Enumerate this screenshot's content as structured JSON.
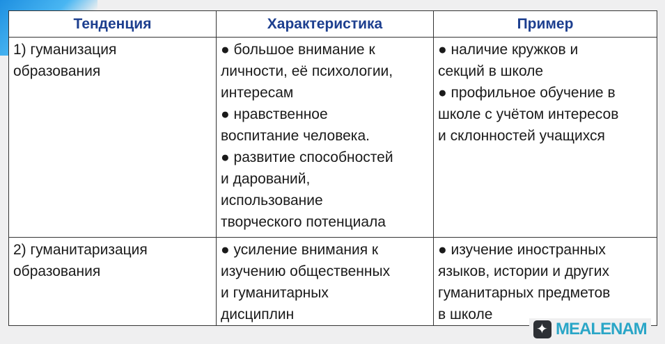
{
  "headers": [
    "Тенденция",
    "Характеристика",
    "Пример"
  ],
  "rows": [
    {
      "trend": [
        "1) гуманизация",
        "образования"
      ],
      "characteristic": [
        "● большое внимание к",
        "личности, её психологии,",
        "интересам",
        "● нравственное",
        "воспитание человека.",
        "● развитие способностей",
        "и дарований,",
        "использование",
        "творческого потенциала"
      ],
      "example": [
        "● наличие кружков и",
        "секций в школе",
        "● профильное обучение в",
        "школе с учётом интересов",
        "и склонностей учащихся"
      ]
    },
    {
      "trend": [
        "2) гуманитаризация",
        "образования"
      ],
      "characteristic": [
        "● усиление внимания к",
        "изучению общественных",
        "и гуманитарных",
        "дисциплин"
      ],
      "example": [
        "● изучение иностранных",
        "языков, истории и других",
        "гуманитарных предметов",
        "в школе"
      ]
    }
  ],
  "watermark": "MEALENAM"
}
